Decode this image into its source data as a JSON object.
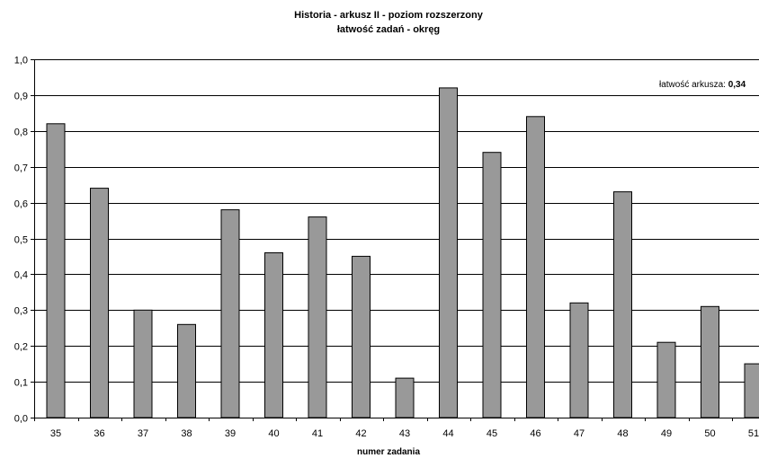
{
  "chart_data": {
    "type": "bar",
    "title": "Historia - arkusz II - poziom rozszerzony",
    "subtitle": "łatwość zadań - okręg",
    "xlabel": "numer zadania",
    "ylabel": "",
    "categories": [
      "35",
      "36",
      "37",
      "38",
      "39",
      "40",
      "41",
      "42",
      "43",
      "44",
      "45",
      "46",
      "47",
      "48",
      "49",
      "50",
      "51"
    ],
    "values": [
      0.82,
      0.64,
      0.3,
      0.26,
      0.58,
      0.46,
      0.56,
      0.45,
      0.11,
      0.92,
      0.74,
      0.84,
      0.32,
      0.63,
      0.21,
      0.31,
      0.15
    ],
    "ylim": [
      0,
      1.0
    ],
    "yticks": [
      "0,0",
      "0,1",
      "0,2",
      "0,3",
      "0,4",
      "0,5",
      "0,6",
      "0,7",
      "0,8",
      "0,9",
      "1,0"
    ],
    "grid": true,
    "legend": "none",
    "bar_color": "#999999",
    "annotation": {
      "label": "łatwość arkusza: ",
      "value": "0,34"
    }
  }
}
